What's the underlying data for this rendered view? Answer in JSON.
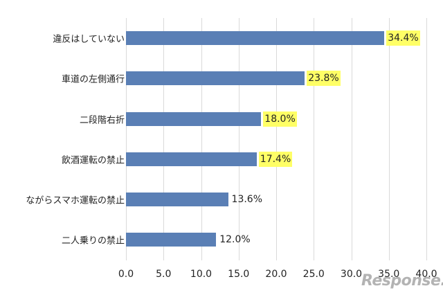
{
  "chart_data": {
    "type": "bar",
    "orientation": "horizontal",
    "title": "",
    "xlabel": "",
    "ylabel": "",
    "categories": [
      "違反はしていない",
      "車道の左側通行",
      "二段階右折",
      "飲酒運転の禁止",
      "ながらスマホ運転の禁止",
      "二人乗りの禁止"
    ],
    "values": [
      34.4,
      23.8,
      18.0,
      17.4,
      13.6,
      12.0
    ],
    "value_labels": [
      "34.4%",
      "23.8%",
      "18.0%",
      "17.4%",
      "13.6%",
      "12.0%"
    ],
    "highlighted": [
      true,
      true,
      true,
      true,
      false,
      false
    ],
    "xlim": [
      0,
      40
    ],
    "xticks": [
      "0.0",
      "5.0",
      "10.0",
      "15.0",
      "20.0",
      "25.0",
      "30.0",
      "35.0",
      "40.0"
    ],
    "grid": "vertical",
    "legend": "none",
    "colors": {
      "bar": "#5a7fb5",
      "highlight": "#ffff66",
      "grid": "#d9d9d9"
    }
  },
  "watermark": "Response."
}
